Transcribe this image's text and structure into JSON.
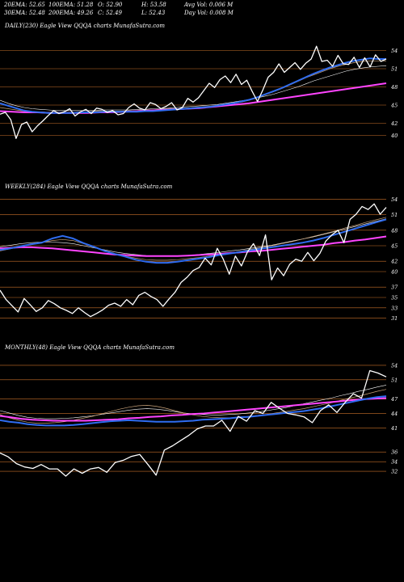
{
  "header": {
    "row1": [
      "20EMA: 52.65",
      "100EMA: 51.28",
      "O: 52.90",
      "H: 53.58",
      "Avg Vol: 0.006  M"
    ],
    "row2": [
      "30EMA: 52.48",
      "200EMA: 49.26",
      "C: 52.49",
      "L: 52.43",
      "Day Vol: 0.008 M"
    ]
  },
  "colors": {
    "background": "#000000",
    "price": "#ffffff",
    "ema_blue": "#2f6cf0",
    "ema_magenta": "#ff44ff",
    "ema_thin": "#c8a27a",
    "level_line": "#c8702a"
  },
  "chart_data": [
    {
      "type": "line",
      "title": "DAILY(230) Eagle  View  QQQA charts MunafaSutra.com",
      "ylim": [
        37,
        57
      ],
      "yticks": [
        "54",
        "51",
        "48",
        "45",
        "42",
        "40"
      ],
      "levels": [
        54,
        51,
        48,
        45,
        42,
        40
      ],
      "series": [
        {
          "role": "price",
          "values": [
            43.5,
            43.8,
            42.6,
            39.5,
            41.8,
            42.2,
            40.6,
            41.6,
            42.4,
            43.3,
            44.1,
            43.6,
            43.9,
            44.4,
            43.2,
            43.9,
            44.3,
            43.6,
            44.5,
            44.3,
            43.8,
            44.1,
            43.4,
            43.6,
            44.6,
            45.2,
            44.5,
            44.2,
            45.4,
            45.1,
            44.4,
            44.8,
            45.4,
            44.2,
            44.6,
            46.1,
            45.5,
            46.2,
            47.4,
            48.6,
            47.9,
            49.2,
            49.8,
            48.7,
            50.1,
            48.4,
            49.1,
            47.3,
            45.6,
            47.5,
            49.6,
            50.4,
            51.8,
            50.4,
            51.2,
            52.0,
            50.9,
            51.9,
            52.6,
            54.7,
            52.2,
            52.4,
            51.4,
            53.2,
            51.8,
            51.7,
            52.9,
            51.2,
            52.8,
            51.3,
            53.3,
            52.2,
            52.6
          ]
        },
        {
          "role": "ema-blue",
          "values": [
            45.3,
            44.9,
            44.5,
            44.1,
            43.9,
            43.8,
            43.7,
            43.7,
            43.7,
            43.7,
            43.8,
            43.8,
            43.8,
            43.9,
            43.9,
            43.9,
            43.9,
            43.9,
            44.0,
            44.0,
            44.1,
            44.2,
            44.3,
            44.4,
            44.5,
            44.6,
            44.7,
            44.9,
            45.1,
            45.3,
            45.6,
            45.9,
            46.3,
            46.8,
            47.3,
            47.8,
            48.4,
            49.0,
            49.6,
            50.2,
            50.7,
            51.2,
            51.6,
            52.0,
            52.3,
            52.5,
            52.7,
            52.6,
            52.6
          ]
        },
        {
          "role": "ema-magenta",
          "values": [
            44.0,
            43.9,
            43.8,
            43.8,
            43.7,
            43.7,
            43.7,
            43.7,
            43.8,
            43.8,
            43.9,
            44.0,
            44.1,
            44.2,
            44.3,
            44.4,
            44.5,
            44.7,
            44.9,
            45.1,
            45.3,
            45.6,
            45.9,
            46.2,
            46.5,
            46.8,
            47.1,
            47.4,
            47.7,
            48.0,
            48.3,
            48.6
          ]
        },
        {
          "role": "ema-thin-1",
          "values": [
            44.6,
            44.4,
            44.2,
            44.0,
            43.9,
            43.9,
            43.8,
            43.8,
            43.8,
            43.8,
            43.9,
            43.9,
            44.0,
            44.0,
            44.0,
            44.0,
            44.1,
            44.1,
            44.2,
            44.2,
            44.3,
            44.4,
            44.4,
            44.5,
            44.6,
            44.7,
            44.8,
            44.9,
            45.1,
            45.3,
            45.5,
            45.8,
            46.2,
            46.7,
            47.2,
            47.7,
            48.3,
            48.9,
            49.5,
            50.0,
            50.5,
            51.0,
            51.4,
            51.7,
            52.0,
            52.2,
            52.3,
            52.3,
            52.3
          ]
        },
        {
          "role": "ema-thin-2",
          "values": [
            45.8,
            45.3,
            44.9,
            44.6,
            44.4,
            44.3,
            44.2,
            44.1,
            44.1,
            44.1,
            44.1,
            44.1,
            44.1,
            44.2,
            44.2,
            44.2,
            44.2,
            44.3,
            44.3,
            44.4,
            44.4,
            44.5,
            44.6,
            44.7,
            44.8,
            44.9,
            45.0,
            45.1,
            45.3,
            45.5,
            45.7,
            45.9,
            46.2,
            46.5,
            46.8,
            47.2,
            47.6,
            48.0,
            48.5,
            49.0,
            49.4,
            49.8,
            50.2,
            50.6,
            50.9,
            51.1,
            51.3,
            51.4,
            51.5
          ]
        }
      ]
    },
    {
      "type": "line",
      "title": "WEEKLY(284) Eagle  View  QQQA charts MunafaSutra.com",
      "ylim": [
        30,
        55
      ],
      "yticks": [
        "54",
        "51",
        "48",
        "45",
        "42",
        "40",
        "37",
        "35",
        "33",
        "31"
      ],
      "levels": [
        54,
        51,
        48,
        45,
        42,
        40,
        37,
        35,
        33,
        31
      ],
      "series": [
        {
          "role": "price",
          "values": [
            36.4,
            34.6,
            33.4,
            32.2,
            34.8,
            33.6,
            32.3,
            33.0,
            34.4,
            33.8,
            33.0,
            32.5,
            31.9,
            33.0,
            32.1,
            31.3,
            31.9,
            32.6,
            33.5,
            33.9,
            33.3,
            34.6,
            33.6,
            35.4,
            36.0,
            35.2,
            34.6,
            33.3,
            34.7,
            36.0,
            37.9,
            38.9,
            40.2,
            40.8,
            42.6,
            41.3,
            44.5,
            42.4,
            39.5,
            43.0,
            41.1,
            43.8,
            45.4,
            43.1,
            47.1,
            38.4,
            40.7,
            39.2,
            41.4,
            42.4,
            42.0,
            43.7,
            42.1,
            43.5,
            45.9,
            47.1,
            48.0,
            45.6,
            50.1,
            51.1,
            52.6,
            52.0,
            53.1,
            51.1,
            52.4
          ]
        },
        {
          "role": "ema-blue",
          "values": [
            44.2,
            44.5,
            44.9,
            45.3,
            45.6,
            46.4,
            46.9,
            46.4,
            45.5,
            44.8,
            44.0,
            43.4,
            42.9,
            42.3,
            41.9,
            41.7,
            41.7,
            41.9,
            42.2,
            42.5,
            42.8,
            43.2,
            43.5,
            43.8,
            44.1,
            44.4,
            44.7,
            45.0,
            45.3,
            45.6,
            46.0,
            46.5,
            47.1,
            47.7,
            48.3,
            48.9,
            49.5,
            50.1
          ]
        },
        {
          "role": "ema-magenta",
          "values": [
            44.5,
            44.6,
            44.7,
            44.7,
            44.6,
            44.5,
            44.3,
            44.1,
            43.9,
            43.7,
            43.5,
            43.3,
            43.2,
            43.1,
            43.0,
            43.0,
            43.0,
            43.0,
            43.1,
            43.2,
            43.3,
            43.4,
            43.6,
            43.7,
            43.9,
            44.0,
            44.2,
            44.4,
            44.6,
            44.8,
            45.0,
            45.2,
            45.5,
            45.7,
            46.0,
            46.2,
            46.5,
            46.8
          ]
        },
        {
          "role": "ema-thin-1",
          "values": [
            44.0,
            44.4,
            44.8,
            45.2,
            45.6,
            46.0,
            46.2,
            46.0,
            45.4,
            44.7,
            44.0,
            43.4,
            43.0,
            42.6,
            42.3,
            42.2,
            42.2,
            42.3,
            42.5,
            42.7,
            43.0,
            43.3,
            43.6,
            43.9,
            44.3,
            44.6,
            45.0,
            45.4,
            45.8,
            46.3,
            46.8,
            47.3,
            47.8,
            48.4,
            48.9,
            49.5,
            50.0,
            50.5
          ]
        },
        {
          "role": "ema-thin-2",
          "values": [
            44.8,
            45.1,
            45.4,
            45.6,
            45.7,
            45.7,
            45.6,
            45.4,
            45.0,
            44.6,
            44.2,
            43.8,
            43.5,
            43.3,
            43.1,
            43.0,
            43.0,
            43.0,
            43.1,
            43.3,
            43.5,
            43.7,
            44.0,
            44.2,
            44.5,
            44.8,
            45.1,
            45.5,
            45.9,
            46.3,
            46.7,
            47.2,
            47.7,
            48.2,
            48.7,
            49.2,
            49.7,
            50.2
          ]
        }
      ]
    },
    {
      "type": "line",
      "title": "MONTHLY(48) Eagle  View  QQQA charts MunafaSutra.com",
      "ylim": [
        30,
        56
      ],
      "yticks": [
        "54",
        "51",
        "47",
        "44",
        "41",
        "36",
        "34",
        "32"
      ],
      "levels": [
        54,
        51,
        47,
        44,
        41,
        36,
        34,
        32
      ],
      "series": [
        {
          "role": "price",
          "values": [
            35.8,
            35.0,
            33.6,
            32.9,
            32.6,
            33.4,
            32.5,
            32.5,
            31.0,
            32.5,
            31.6,
            32.5,
            32.8,
            31.8,
            33.8,
            34.3,
            35.1,
            35.5,
            33.4,
            31.2,
            36.4,
            37.3,
            38.4,
            39.5,
            40.8,
            41.4,
            41.4,
            42.6,
            40.3,
            43.4,
            42.4,
            44.6,
            44.0,
            46.3,
            45.1,
            44.0,
            43.7,
            43.3,
            42.1,
            44.6,
            45.8,
            44.2,
            46.3,
            48.1,
            47.2,
            52.9,
            52.4,
            51.6
          ]
        },
        {
          "role": "ema-blue",
          "values": [
            42.6,
            42.3,
            42.1,
            41.8,
            41.6,
            41.5,
            41.5,
            41.5,
            41.6,
            41.8,
            42.0,
            42.2,
            42.4,
            42.5,
            42.6,
            42.5,
            42.4,
            42.3,
            42.3,
            42.3,
            42.4,
            42.5,
            42.7,
            42.8,
            42.9,
            43.0,
            43.2,
            43.3,
            43.5,
            43.7,
            43.9,
            44.1,
            44.3,
            44.5,
            44.8,
            45.1,
            45.5,
            45.9,
            46.3,
            46.7,
            47.1,
            47.4,
            47.6
          ]
        },
        {
          "role": "ema-magenta",
          "values": [
            43.5,
            43.2,
            42.9,
            42.7,
            42.6,
            42.5,
            42.5,
            42.5,
            42.5,
            42.6,
            42.7,
            42.8,
            43.0,
            43.1,
            43.3,
            43.4,
            43.6,
            43.7,
            43.9,
            44.0,
            44.2,
            44.4,
            44.6,
            44.8,
            45.0,
            45.2,
            45.4,
            45.6,
            45.8,
            46.0,
            46.2,
            46.4,
            46.6,
            46.8,
            47.0,
            47.1,
            47.2
          ]
        },
        {
          "role": "ema-thin-1",
          "values": [
            43.8,
            43.1,
            42.6,
            42.2,
            42.0,
            42.0,
            42.1,
            42.3,
            42.6,
            43.0,
            43.4,
            43.9,
            44.4,
            44.9,
            45.3,
            45.6,
            45.7,
            45.5,
            45.1,
            44.6,
            44.1,
            43.7,
            43.4,
            43.2,
            43.1,
            43.1,
            43.2,
            43.4,
            43.6,
            43.8,
            44.1,
            44.4,
            44.7,
            45.0,
            45.4,
            45.8,
            46.2,
            46.7,
            47.2,
            47.6,
            48.1,
            48.6,
            49.0
          ]
        },
        {
          "role": "ema-thin-2",
          "values": [
            44.6,
            44.1,
            43.6,
            43.2,
            43.0,
            42.9,
            42.9,
            43.0,
            43.1,
            43.3,
            43.5,
            43.8,
            44.1,
            44.4,
            44.7,
            44.9,
            45.0,
            44.9,
            44.7,
            44.4,
            44.1,
            43.9,
            43.8,
            43.7,
            43.7,
            43.8,
            43.9,
            44.1,
            44.3,
            44.6,
            44.9,
            45.2,
            45.6,
            46.0,
            46.4,
            46.8,
            47.2,
            47.7,
            48.1,
            48.6,
            49.0,
            49.5,
            49.9
          ]
        }
      ]
    }
  ]
}
